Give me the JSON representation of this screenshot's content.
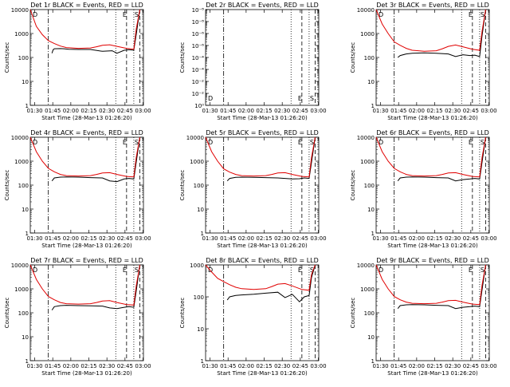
{
  "figure": {
    "ylabel": "Counts/sec",
    "xlabel": "Start Time (28-Mar-13 01:26:20)",
    "x_ticks": [
      "01:30",
      "01:45",
      "02:00",
      "02:15",
      "02:30",
      "02:45",
      "03:00"
    ],
    "y_ticks_log": [
      "1",
      "10",
      "100",
      "1000",
      "10000"
    ],
    "y_ticks_empty": [
      "10⁰",
      "10⁻²",
      "10⁻⁴",
      "10⁻⁶",
      "10⁻⁸"
    ],
    "colors": {
      "events": "#000000",
      "lld": "#e00000"
    },
    "vlines_minutes": {
      "dashdot": 15,
      "dotted": [
        71,
        86
      ],
      "dashed": [
        80,
        91
      ]
    }
  },
  "chart_data": [
    {
      "type": "line",
      "title": "Det 1r BLACK = Events, RED = LLD",
      "markers": [
        "D",
        "E",
        "S"
      ],
      "x_unit": "minutes after 01:26:20",
      "ylim": [
        1,
        10000
      ],
      "yscale": "log",
      "series": [
        {
          "name": "Events",
          "x": [
            15,
            18,
            19,
            20,
            25,
            28,
            32,
            40,
            50,
            60,
            68,
            72,
            78,
            82,
            86,
            88,
            91
          ],
          "values": [
            null,
            150,
            210,
            230,
            235,
            230,
            220,
            215,
            215,
            180,
            190,
            150,
            200,
            210,
            200,
            900,
            10000
          ]
        },
        {
          "name": "LLD",
          "x": [
            0,
            5,
            10,
            15,
            20,
            25,
            30,
            40,
            50,
            55,
            60,
            66,
            72,
            80,
            86,
            88,
            91
          ],
          "values": [
            10000,
            2000,
            900,
            500,
            380,
            300,
            260,
            240,
            250,
            280,
            320,
            340,
            290,
            240,
            220,
            1500,
            10000
          ]
        }
      ]
    },
    {
      "type": "line",
      "title": "Det 2r BLACK = Events, RED = LLD",
      "markers": [
        "D",
        "E",
        "S"
      ],
      "x_unit": "minutes after 01:26:20",
      "ylim": [
        1e-08,
        1
      ],
      "yscale": "log",
      "series": []
    },
    {
      "type": "line",
      "title": "Det 3r BLACK = Events, RED = LLD",
      "markers": [
        "D",
        "E",
        "S"
      ],
      "x_unit": "minutes after 01:26:20",
      "ylim": [
        1,
        10000
      ],
      "yscale": "log",
      "series": [
        {
          "name": "Events",
          "x": [
            15,
            18,
            20,
            25,
            30,
            40,
            50,
            60,
            66,
            72,
            78,
            82,
            86,
            88,
            91
          ],
          "values": [
            null,
            100,
            120,
            140,
            150,
            155,
            150,
            140,
            110,
            130,
            120,
            125,
            110,
            800,
            10000
          ]
        },
        {
          "name": "LLD",
          "x": [
            0,
            5,
            10,
            15,
            20,
            25,
            30,
            40,
            50,
            55,
            60,
            66,
            72,
            80,
            86,
            88,
            91
          ],
          "values": [
            10000,
            2500,
            1000,
            450,
            320,
            240,
            200,
            180,
            190,
            230,
            290,
            330,
            280,
            220,
            200,
            1200,
            10000
          ]
        }
      ]
    },
    {
      "type": "line",
      "title": "Det 4r BLACK = Events, RED = LLD",
      "markers": [
        "D",
        "E",
        "S"
      ],
      "x_unit": "minutes after 01:26:20",
      "ylim": [
        1,
        10000
      ],
      "yscale": "log",
      "series": [
        {
          "name": "Events",
          "x": [
            15,
            18,
            20,
            25,
            30,
            40,
            50,
            60,
            66,
            72,
            78,
            82,
            86,
            88,
            91
          ],
          "values": [
            null,
            150,
            200,
            215,
            220,
            215,
            205,
            200,
            150,
            140,
            180,
            190,
            180,
            900,
            10000
          ]
        },
        {
          "name": "LLD",
          "x": [
            0,
            5,
            10,
            15,
            20,
            25,
            30,
            40,
            50,
            55,
            60,
            66,
            72,
            80,
            86,
            88,
            91
          ],
          "values": [
            10000,
            2500,
            1000,
            500,
            360,
            280,
            250,
            240,
            250,
            280,
            320,
            330,
            280,
            230,
            220,
            1400,
            10000
          ]
        }
      ]
    },
    {
      "type": "line",
      "title": "Det 5r BLACK = Events, RED = LLD",
      "markers": [
        "D",
        "E",
        "S"
      ],
      "x_unit": "minutes after 01:26:20",
      "ylim": [
        1,
        10000
      ],
      "yscale": "log",
      "series": [
        {
          "name": "Events",
          "x": [
            15,
            18,
            20,
            25,
            30,
            40,
            50,
            60,
            66,
            72,
            78,
            82,
            86,
            88,
            91
          ],
          "values": [
            null,
            150,
            190,
            210,
            215,
            210,
            205,
            200,
            190,
            180,
            185,
            200,
            190,
            900,
            10000
          ]
        },
        {
          "name": "LLD",
          "x": [
            0,
            5,
            10,
            15,
            20,
            25,
            30,
            40,
            50,
            55,
            60,
            66,
            72,
            80,
            86,
            88,
            91
          ],
          "values": [
            10000,
            2500,
            1000,
            480,
            350,
            280,
            250,
            240,
            250,
            280,
            320,
            330,
            280,
            230,
            220,
            1400,
            10000
          ]
        }
      ]
    },
    {
      "type": "line",
      "title": "Det 6r BLACK = Events, RED = LLD",
      "markers": [
        "D",
        "E",
        "S"
      ],
      "x_unit": "minutes after 01:26:20",
      "ylim": [
        1,
        10000
      ],
      "yscale": "log",
      "series": [
        {
          "name": "Events",
          "x": [
            15,
            18,
            20,
            25,
            30,
            40,
            50,
            60,
            66,
            72,
            78,
            82,
            86,
            88,
            91
          ],
          "values": [
            null,
            150,
            200,
            215,
            220,
            215,
            205,
            200,
            150,
            170,
            180,
            190,
            180,
            900,
            10000
          ]
        },
        {
          "name": "LLD",
          "x": [
            0,
            5,
            10,
            15,
            20,
            25,
            30,
            40,
            50,
            55,
            60,
            66,
            72,
            80,
            86,
            88,
            91
          ],
          "values": [
            10000,
            2500,
            1000,
            500,
            360,
            280,
            250,
            240,
            250,
            280,
            320,
            330,
            280,
            230,
            220,
            1400,
            10000
          ]
        }
      ]
    },
    {
      "type": "line",
      "title": "Det 7r BLACK = Events, RED = LLD",
      "markers": [
        "D",
        "E",
        "S"
      ],
      "x_unit": "minutes after 01:26:20",
      "ylim": [
        1,
        10000
      ],
      "yscale": "log",
      "series": [
        {
          "name": "Events",
          "x": [
            15,
            18,
            20,
            25,
            30,
            40,
            50,
            60,
            66,
            72,
            78,
            82,
            86,
            88,
            91
          ],
          "values": [
            null,
            130,
            180,
            200,
            205,
            200,
            195,
            190,
            160,
            150,
            170,
            180,
            170,
            800,
            10000
          ]
        },
        {
          "name": "LLD",
          "x": [
            0,
            5,
            10,
            15,
            20,
            25,
            30,
            40,
            50,
            55,
            60,
            66,
            72,
            80,
            86,
            88,
            91
          ],
          "values": [
            10000,
            2500,
            1000,
            480,
            350,
            270,
            240,
            230,
            240,
            270,
            310,
            320,
            270,
            220,
            210,
            1300,
            10000
          ]
        }
      ]
    },
    {
      "type": "line",
      "title": "Det 8r BLACK = Events, RED = LLD",
      "markers": [
        "D",
        "E",
        "S"
      ],
      "x_unit": "minutes after 01:26:20",
      "ylim": [
        1,
        1000
      ],
      "yscale": "log",
      "series": [
        {
          "name": "Events",
          "x": [
            15,
            18,
            20,
            25,
            30,
            40,
            50,
            60,
            66,
            72,
            78,
            82,
            86,
            88,
            91
          ],
          "values": [
            null,
            80,
            100,
            110,
            115,
            120,
            130,
            140,
            95,
            120,
            70,
            100,
            110,
            400,
            1000
          ]
        },
        {
          "name": "LLD",
          "x": [
            0,
            5,
            10,
            15,
            20,
            25,
            30,
            40,
            50,
            55,
            60,
            66,
            72,
            80,
            86,
            88,
            91
          ],
          "values": [
            1000,
            600,
            380,
            300,
            240,
            200,
            180,
            170,
            180,
            210,
            250,
            260,
            220,
            170,
            160,
            500,
            1000
          ]
        }
      ]
    },
    {
      "type": "line",
      "title": "Det 9r BLACK = Events, RED = LLD",
      "markers": [
        "D",
        "E",
        "S"
      ],
      "x_unit": "minutes after 01:26:20",
      "ylim": [
        1,
        10000
      ],
      "yscale": "log",
      "series": [
        {
          "name": "Events",
          "x": [
            15,
            18,
            20,
            25,
            30,
            40,
            50,
            60,
            66,
            72,
            78,
            82,
            86,
            88,
            91
          ],
          "values": [
            null,
            150,
            200,
            215,
            220,
            215,
            205,
            200,
            150,
            170,
            180,
            190,
            180,
            900,
            10000
          ]
        },
        {
          "name": "LLD",
          "x": [
            0,
            5,
            10,
            15,
            20,
            25,
            30,
            40,
            50,
            55,
            60,
            66,
            72,
            80,
            86,
            88,
            91
          ],
          "values": [
            10000,
            2500,
            1000,
            480,
            350,
            280,
            250,
            240,
            250,
            280,
            320,
            330,
            280,
            230,
            220,
            1400,
            10000
          ]
        }
      ]
    }
  ]
}
